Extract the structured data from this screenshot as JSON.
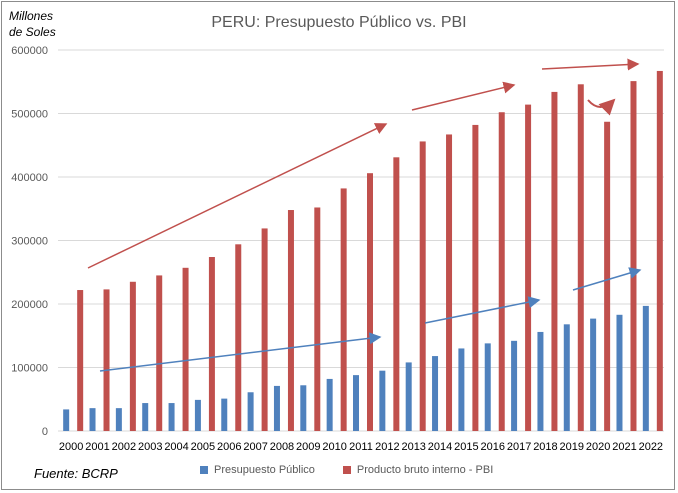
{
  "y_axis_caption": "Millones\nde Soles",
  "source_note": "Fuente: BCRP",
  "colors": {
    "presupuesto": "#4f81bd",
    "pbi": "#c0504d",
    "grid": "#d9d9d9",
    "axis_text": "#595959"
  },
  "chart_data": {
    "type": "bar",
    "title": "PERU: Presupuesto Público vs. PBI",
    "xlabel": "",
    "ylabel": "",
    "ylim": [
      0,
      600000
    ],
    "yticks": [
      "0",
      "100000",
      "200000",
      "300000",
      "400000",
      "500000",
      "600000"
    ],
    "grid": true,
    "legend_position": "bottom",
    "categories": [
      "2000",
      "2001",
      "2002",
      "2003",
      "2004",
      "2005",
      "2006",
      "2007",
      "2008",
      "2009",
      "2010",
      "2011",
      "2012",
      "2013",
      "2014",
      "2015",
      "2016",
      "2017",
      "2018",
      "2019",
      "2020",
      "2021",
      "2022"
    ],
    "series": [
      {
        "name": "Presupuesto Público",
        "values": [
          34000,
          36000,
          36000,
          44000,
          44000,
          49000,
          51000,
          61000,
          71000,
          72000,
          82000,
          88000,
          95000,
          108000,
          118000,
          130000,
          138000,
          142000,
          156000,
          168000,
          177000,
          183000,
          197000
        ]
      },
      {
        "name": "Producto bruto interno - PBI",
        "values": [
          222000,
          223000,
          235000,
          245000,
          257000,
          274000,
          294000,
          319000,
          348000,
          352000,
          382000,
          406000,
          431000,
          456000,
          467000,
          482000,
          502000,
          514000,
          534000,
          546000,
          487000,
          551000,
          567000
        ]
      }
    ]
  }
}
